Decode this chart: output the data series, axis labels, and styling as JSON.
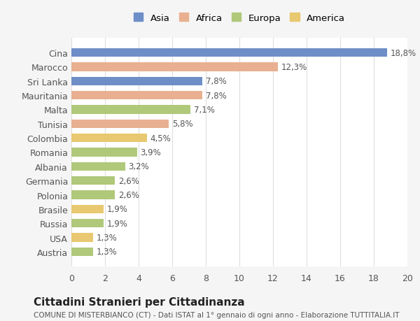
{
  "categories": [
    "Austria",
    "USA",
    "Russia",
    "Brasile",
    "Polonia",
    "Germania",
    "Albania",
    "Romania",
    "Colombia",
    "Tunisia",
    "Malta",
    "Mauritania",
    "Sri Lanka",
    "Marocco",
    "Cina"
  ],
  "values": [
    1.3,
    1.3,
    1.9,
    1.9,
    2.6,
    2.6,
    3.2,
    3.9,
    4.5,
    5.8,
    7.1,
    7.8,
    7.8,
    12.3,
    18.8
  ],
  "continents": [
    "Europa",
    "America",
    "Europa",
    "America",
    "Europa",
    "Europa",
    "Europa",
    "Europa",
    "America",
    "Africa",
    "Europa",
    "Africa",
    "Asia",
    "Africa",
    "Asia"
  ],
  "colors": {
    "Asia": "#6e8ec8",
    "Africa": "#e8b090",
    "Europa": "#b0c87a",
    "America": "#e8c870"
  },
  "legend_order": [
    "Asia",
    "Africa",
    "Europa",
    "America"
  ],
  "title": "Cittadini Stranieri per Cittadinanza",
  "subtitle": "COMUNE DI MISTERBIANCO (CT) - Dati ISTAT al 1° gennaio di ogni anno - Elaborazione TUTTITALIA.IT",
  "xlim": [
    0,
    20
  ],
  "xticks": [
    0,
    2,
    4,
    6,
    8,
    10,
    12,
    14,
    16,
    18,
    20
  ],
  "bg_color": "#f5f5f5",
  "bar_bg_color": "#ffffff"
}
